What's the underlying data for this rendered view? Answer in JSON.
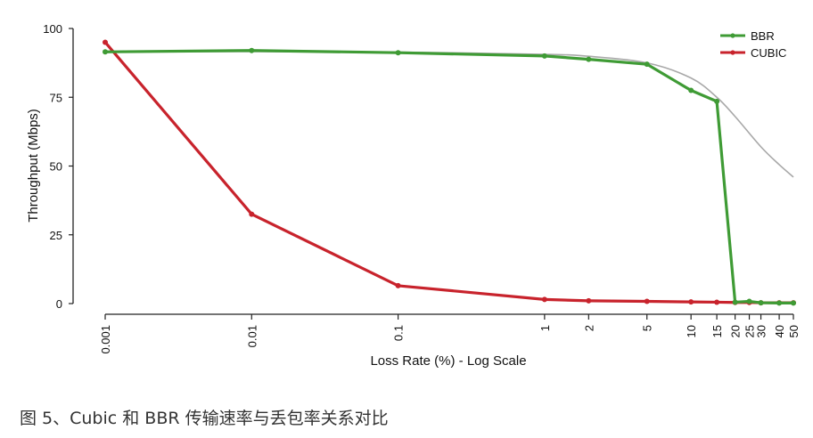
{
  "caption": "图 5、Cubic 和 BBR 传输速率与丢包率关系对比",
  "colors": {
    "bbr": "#3f9b35",
    "cubic": "#c8232c",
    "reference": "#a8a8a8",
    "axis": "#222222"
  },
  "chart_data": {
    "type": "line",
    "title": "",
    "xlabel": "Loss Rate (%) - Log Scale",
    "ylabel": "Throughput (Mbps)",
    "x_scale": "log",
    "xlim": [
      0.001,
      50
    ],
    "ylim": [
      0,
      100
    ],
    "x_ticks": [
      0.001,
      0.01,
      0.1,
      1,
      2,
      5,
      10,
      15,
      20,
      25,
      30,
      40,
      50
    ],
    "x_tick_labels": [
      "0.001",
      "0.01",
      "0.1",
      "1",
      "2",
      "5",
      "10",
      "15",
      "20",
      "25",
      "30",
      "40",
      "50"
    ],
    "y_ticks": [
      0,
      25,
      50,
      75,
      100
    ],
    "y_tick_labels": [
      "0",
      "25",
      "50",
      "75",
      "100"
    ],
    "grid": false,
    "legend_position": "top-right",
    "series": [
      {
        "name": "BBR",
        "color": "#3f9b35",
        "x": [
          0.001,
          0.01,
          0.1,
          1,
          2,
          5,
          10,
          15,
          20,
          25,
          30,
          40,
          50
        ],
        "y": [
          91.5,
          92,
          91.2,
          90,
          88.8,
          87,
          77.5,
          73.5,
          0.5,
          0.8,
          0.3,
          0.2,
          0.2
        ]
      },
      {
        "name": "CUBIC",
        "color": "#c8232c",
        "x": [
          0.001,
          0.01,
          0.1,
          1,
          2,
          5,
          10,
          15,
          20,
          25,
          30,
          40,
          50
        ],
        "y": [
          95,
          32.5,
          6.5,
          1.5,
          1.0,
          0.8,
          0.6,
          0.5,
          0.4,
          0.4,
          0.3,
          0.3,
          0.3
        ]
      },
      {
        "color": "#a8a8a8",
        "x": [
          0.001,
          0.01,
          0.1,
          1,
          2,
          5,
          10,
          15,
          20,
          30,
          40,
          50
        ],
        "y": [
          91.5,
          91.6,
          91.4,
          90.6,
          89.9,
          87.5,
          82,
          75,
          68,
          57,
          50.5,
          46
        ]
      }
    ]
  }
}
